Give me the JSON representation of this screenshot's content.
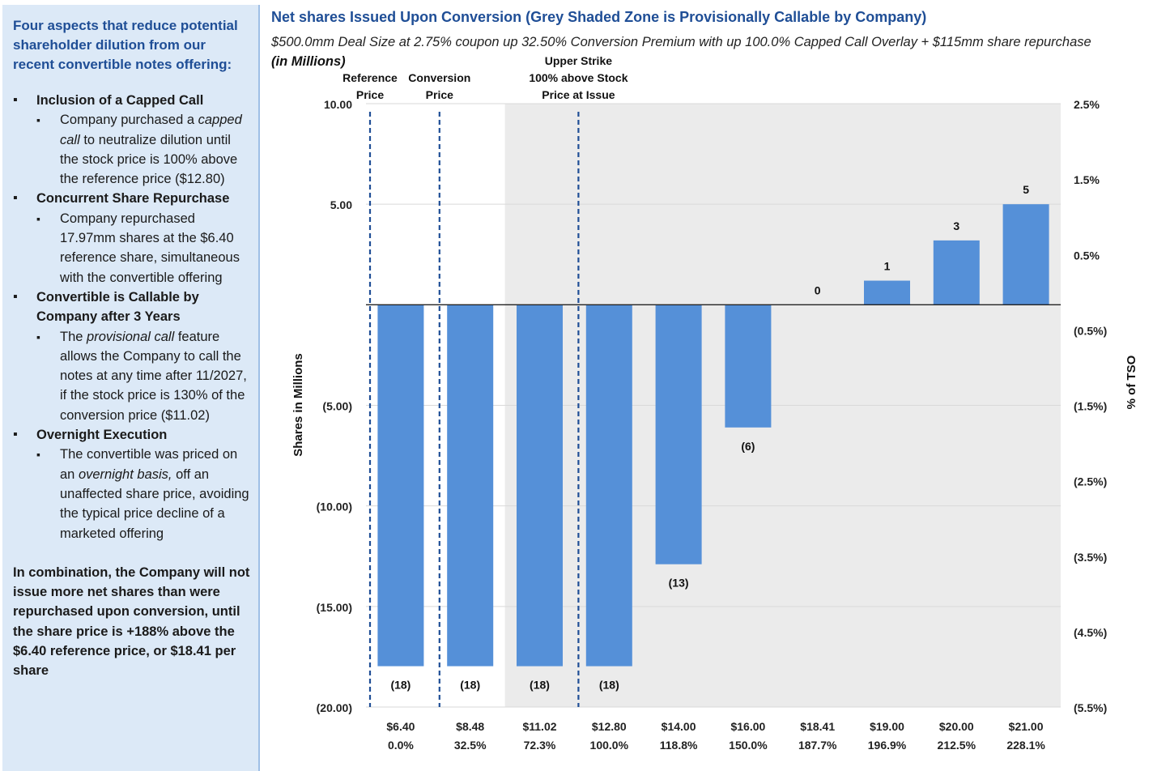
{
  "sidebar": {
    "title": "Four aspects that reduce potential shareholder dilution from our recent convertible notes offering:",
    "items": [
      {
        "heading": "Inclusion of a Capped Call",
        "sub": [
          {
            "pre": "Company purchased a ",
            "em": "capped call",
            "post": " to neutralize dilution until the stock price is 100% above the reference price ($12.80)"
          }
        ]
      },
      {
        "heading": "Concurrent Share Repurchase",
        "sub": [
          {
            "pre": "Company repurchased 17.97mm shares at the $6.40 reference share, simultaneous with the convertible offering",
            "em": "",
            "post": ""
          }
        ]
      },
      {
        "heading": "Convertible is Callable by Company after 3 Years",
        "sub": [
          {
            "pre": "The ",
            "em": "provisional call",
            "post": " feature allows the Company to call the notes at any time after 11/2027, if the stock price is 130% of the conversion price ($11.02)"
          }
        ]
      },
      {
        "heading": "Overnight Execution",
        "sub": [
          {
            "pre": "The convertible was priced on an ",
            "em": "overnight basis,",
            "post": " off an unaffected share price, avoiding the typical price decline of a marketed offering"
          }
        ]
      }
    ],
    "closing": "In combination, the Company will not issue more net shares than were repurchased upon conversion, until the share price is +188% above the $6.40 reference price, or $18.41 per share"
  },
  "chart_data": {
    "type": "bar",
    "title": "Net shares Issued Upon Conversion (Grey Shaded Zone is Provisionally Callable by Company)",
    "subtitle": "$500.0mm Deal Size at 2.75% coupon up 32.50% Conversion Premium with up 100.0% Capped Call Overlay + $115mm share repurchase",
    "units_note": "(in Millions)",
    "ylabel": "Shares in Millions",
    "y2label": "% of TSO",
    "ylim": [
      -20,
      10
    ],
    "y_ticks": [
      {
        "value": 10,
        "label": "10.00"
      },
      {
        "value": 5,
        "label": "5.00"
      },
      {
        "value": -5,
        "label": "(5.00)"
      },
      {
        "value": -10,
        "label": "(10.00)"
      },
      {
        "value": -15,
        "label": "(15.00)"
      },
      {
        "value": -20,
        "label": "(20.00)"
      }
    ],
    "y2_ticks": [
      "2.5%",
      "1.5%",
      "0.5%",
      "(0.5%)",
      "(1.5%)",
      "(2.5%)",
      "(3.5%)",
      "(4.5%)",
      "(5.5%)"
    ],
    "categories": [
      "$6.40",
      "$8.48",
      "$11.02",
      "$12.80",
      "$14.00",
      "$16.00",
      "$18.41",
      "$19.00",
      "$20.00",
      "$21.00"
    ],
    "categories_pct": [
      "0.0%",
      "32.5%",
      "72.3%",
      "100.0%",
      "118.8%",
      "150.0%",
      "187.7%",
      "196.9%",
      "212.5%",
      "228.1%"
    ],
    "values": [
      -17.97,
      -17.97,
      -17.97,
      -17.97,
      -12.9,
      -6.1,
      0,
      1.2,
      3.2,
      5.0
    ],
    "data_labels": [
      "(18)",
      "(18)",
      "(18)",
      "(18)",
      "(13)",
      "(6)",
      "0",
      "1",
      "3",
      "5"
    ],
    "shaded_from_category": "$11.02",
    "grid": true,
    "bar_color": "#5590d8",
    "shade_color": "#ebebeb",
    "line_color": "#1f4e96",
    "markers": [
      {
        "category": "$6.40",
        "lines": [
          "Reference",
          "Price"
        ]
      },
      {
        "category": "$8.48",
        "lines": [
          "Conversion",
          "Price"
        ]
      },
      {
        "category": "$12.80",
        "lines": [
          "Upper Strike",
          "100% above Stock",
          "Price at Issue"
        ]
      }
    ]
  }
}
